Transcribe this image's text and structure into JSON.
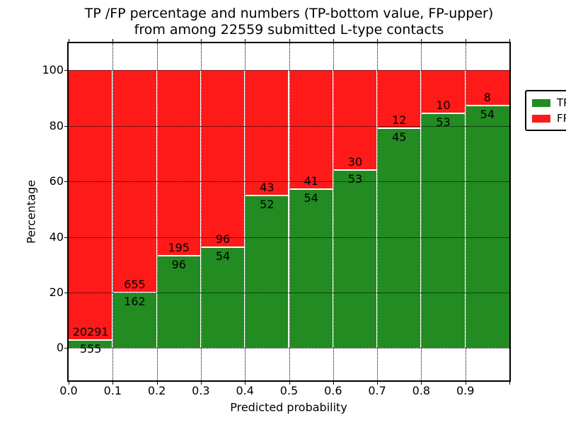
{
  "chart_data": {
    "type": "bar",
    "stacked": true,
    "normalized_to_percent": true,
    "title_line1": "TP /FP percentage and numbers (TP-bottom value, FP-upper)",
    "title_line2": "from among 22559 submitted L-type contacts",
    "xlabel": "Predicted probability",
    "ylabel": "Percentage",
    "categories": [
      "0.0",
      "0.1",
      "0.2",
      "0.3",
      "0.4",
      "0.5",
      "0.6",
      "0.7",
      "0.8",
      "0.9"
    ],
    "series": [
      {
        "name": "TP",
        "color": "#228b22",
        "values": [
          555,
          162,
          96,
          54,
          52,
          54,
          53,
          45,
          53,
          54
        ]
      },
      {
        "name": "FP",
        "color": "#ff1a1a",
        "values": [
          20291,
          655,
          195,
          96,
          43,
          41,
          30,
          12,
          10,
          8
        ]
      }
    ],
    "bar_bin_width": 0.1,
    "xlim": [
      0.0,
      1.0
    ],
    "ylim": [
      -11.6,
      109.7
    ],
    "xtick_labels": [
      "0.0",
      "0.1",
      "0.2",
      "0.3",
      "0.4",
      "0.5",
      "0.6",
      "0.7",
      "0.8",
      "0.9"
    ],
    "yticks": [
      0,
      20,
      40,
      60,
      80,
      100
    ],
    "grid": true,
    "grid_style": "dotted",
    "legend_position": "upper right",
    "background": "#ffffff"
  }
}
